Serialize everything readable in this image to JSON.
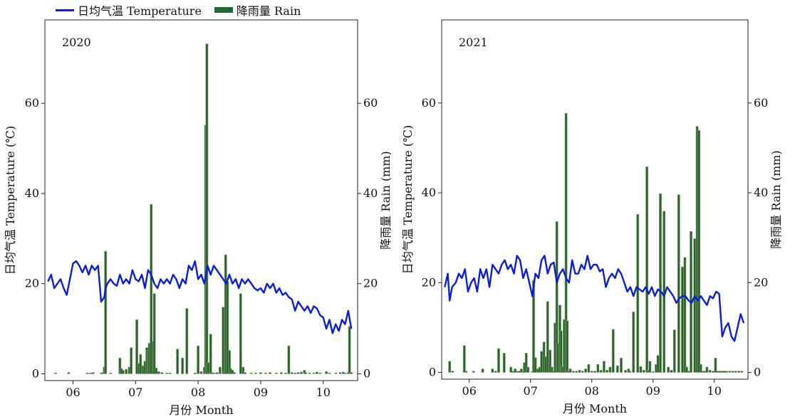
{
  "legend": {
    "temperature_label": "日均气温 Temperature",
    "rain_label": "降雨量 Rain"
  },
  "colors": {
    "temperature": "#0a1ed8",
    "rain_fill": "#2f5f2c",
    "rain_edge": "#7fb27a"
  },
  "chart_data": [
    {
      "type": "bar+line",
      "title": "2020",
      "xlabel": "月份 Month",
      "ylabel_left": "日均气温 Temperature (℃)",
      "ylabel_right": "降雨量 Rain (mm)",
      "xticks": [
        "06",
        "07",
        "08",
        "09",
        "10"
      ],
      "xtick_positions": [
        6,
        7,
        8,
        9,
        10
      ],
      "xlim": [
        5.55,
        10.55
      ],
      "ylim_left": [
        -1.5,
        78.5
      ],
      "ylim_right": [
        -1.5,
        78.5
      ],
      "yticks_left": [
        0,
        20,
        40,
        60
      ],
      "yticks_right": [
        0,
        20,
        40,
        60
      ],
      "temperature": {
        "name": "日均气温 Temperature",
        "x": [
          5.6,
          5.65,
          5.7,
          5.75,
          5.8,
          5.85,
          5.9,
          5.95,
          6.0,
          6.05,
          6.1,
          6.15,
          6.2,
          6.25,
          6.3,
          6.35,
          6.4,
          6.45,
          6.5,
          6.52,
          6.55,
          6.6,
          6.65,
          6.7,
          6.75,
          6.8,
          6.85,
          6.9,
          6.95,
          7.0,
          7.05,
          7.1,
          7.15,
          7.2,
          7.25,
          7.3,
          7.35,
          7.4,
          7.45,
          7.5,
          7.55,
          7.6,
          7.65,
          7.7,
          7.75,
          7.8,
          7.85,
          7.9,
          7.95,
          8.0,
          8.05,
          8.1,
          8.15,
          8.2,
          8.25,
          8.3,
          8.35,
          8.4,
          8.45,
          8.5,
          8.55,
          8.6,
          8.65,
          8.7,
          8.75,
          8.8,
          8.85,
          8.9,
          8.95,
          9.0,
          9.05,
          9.1,
          9.15,
          9.2,
          9.25,
          9.3,
          9.35,
          9.4,
          9.45,
          9.5,
          9.55,
          9.6,
          9.65,
          9.7,
          9.75,
          9.8,
          9.85,
          9.9,
          9.95,
          10.0,
          10.05,
          10.1,
          10.15,
          10.2,
          10.25,
          10.3,
          10.35,
          10.4,
          10.45
        ],
        "values": [
          20.5,
          22,
          19,
          20,
          21,
          19,
          17.5,
          21,
          24.5,
          25,
          24,
          22.5,
          24,
          22,
          24,
          23,
          24,
          16,
          17,
          19,
          20,
          21,
          20,
          19.5,
          22,
          20,
          21,
          20,
          23,
          21,
          20.5,
          22,
          19,
          23,
          22,
          20,
          19,
          21,
          20,
          21,
          20,
          22,
          21,
          19,
          21,
          20,
          24,
          23,
          25,
          21,
          22,
          20,
          24,
          22,
          24,
          23,
          22,
          21,
          20,
          22,
          20,
          21,
          19,
          21,
          20,
          21,
          20,
          19,
          18.5,
          19,
          18,
          20,
          19,
          20,
          18,
          19,
          17.5,
          18,
          17,
          16.5,
          14,
          16,
          15,
          14,
          15,
          13.5,
          15,
          14.5,
          13,
          12.5,
          10,
          12,
          9,
          11,
          9.5,
          12,
          11,
          14,
          10
        ]
      },
      "rain": {
        "name": "降雨量 Rain",
        "x": [
          5.72,
          5.93,
          6.23,
          6.28,
          6.32,
          6.45,
          6.48,
          6.5,
          6.52,
          6.6,
          6.75,
          6.77,
          6.8,
          6.85,
          6.9,
          6.93,
          7.02,
          7.05,
          7.08,
          7.12,
          7.15,
          7.18,
          7.2,
          7.22,
          7.25,
          7.28,
          7.3,
          7.33,
          7.37,
          7.42,
          7.5,
          7.55,
          7.67,
          7.75,
          7.82,
          7.95,
          8.0,
          8.05,
          8.1,
          8.12,
          8.14,
          8.16,
          8.2,
          8.22,
          8.25,
          8.3,
          8.35,
          8.4,
          8.42,
          8.44,
          8.47,
          8.5,
          8.52,
          8.55,
          8.58,
          8.68,
          8.72,
          8.75,
          8.85,
          8.92,
          9.0,
          9.08,
          9.15,
          9.25,
          9.33,
          9.4,
          9.45,
          9.5,
          9.55,
          9.6,
          9.65,
          9.7,
          9.72,
          9.78,
          9.85,
          9.9,
          9.95,
          10.05,
          10.1,
          10.2,
          10.27,
          10.32,
          10.35,
          10.4,
          10.42,
          10.45
        ],
        "values": [
          0.2,
          0.3,
          0.2,
          0.2,
          0.3,
          0.2,
          0.3,
          1.5,
          27.2,
          0.2,
          3.5,
          1.2,
          0.8,
          1.0,
          1.5,
          5.8,
          12,
          2.3,
          4.3,
          1.8,
          2.8,
          5.8,
          5.2,
          6.8,
          37.6,
          7.2,
          17.8,
          1.3,
          0.5,
          0.3,
          0.2,
          0.2,
          5.5,
          3.5,
          14.5,
          0.2,
          6.2,
          0.5,
          1.5,
          55.2,
          73.2,
          2.5,
          8.8,
          0.3,
          0.2,
          0.3,
          1.5,
          14.8,
          0.5,
          26.4,
          20.5,
          5.2,
          1.2,
          0.8,
          0.3,
          17.8,
          1.5,
          0.3,
          0.2,
          0.2,
          0.3,
          0.2,
          0.3,
          0.2,
          0.3,
          0.2,
          6.2,
          0.3,
          0.2,
          0.3,
          0.4,
          0.8,
          0.3,
          0.2,
          0.2,
          0.4,
          0.2,
          0.5,
          0.2,
          0.2,
          0.3,
          0.4,
          0.2,
          0.3,
          10.5,
          0.3
        ]
      }
    },
    {
      "type": "bar+line",
      "title": "2021",
      "xlabel": "月份 Month",
      "ylabel_left": "日均气温 Temperature (℃)",
      "ylabel_right": "降雨量 Rain (mm)",
      "xticks": [
        "06",
        "07",
        "08",
        "09",
        "10"
      ],
      "xtick_positions": [
        6,
        7,
        8,
        9,
        10
      ],
      "xlim": [
        5.55,
        10.55
      ],
      "ylim_left": [
        -1.5,
        78.5
      ],
      "ylim_right": [
        -1.5,
        78.5
      ],
      "yticks_left": [
        0,
        20,
        40,
        60
      ],
      "yticks_right": [
        0,
        20,
        40,
        60
      ],
      "temperature": {
        "name": "日均气温 Temperature",
        "x": [
          5.6,
          5.65,
          5.68,
          5.72,
          5.78,
          5.83,
          5.88,
          5.93,
          5.98,
          6.03,
          6.08,
          6.13,
          6.18,
          6.23,
          6.28,
          6.33,
          6.38,
          6.43,
          6.48,
          6.53,
          6.58,
          6.63,
          6.68,
          6.73,
          6.78,
          6.83,
          6.88,
          6.93,
          6.98,
          7.03,
          7.08,
          7.13,
          7.18,
          7.23,
          7.28,
          7.33,
          7.38,
          7.43,
          7.48,
          7.53,
          7.58,
          7.63,
          7.68,
          7.73,
          7.78,
          7.83,
          7.88,
          7.93,
          7.98,
          8.03,
          8.08,
          8.13,
          8.18,
          8.23,
          8.28,
          8.33,
          8.38,
          8.43,
          8.48,
          8.53,
          8.58,
          8.63,
          8.68,
          8.73,
          8.78,
          8.83,
          8.88,
          8.93,
          8.98,
          9.03,
          9.08,
          9.13,
          9.18,
          9.23,
          9.28,
          9.33,
          9.38,
          9.43,
          9.48,
          9.53,
          9.58,
          9.63,
          9.68,
          9.73,
          9.78,
          9.83,
          9.88,
          9.93,
          9.98,
          10.03,
          10.08,
          10.13,
          10.18,
          10.23,
          10.28,
          10.33,
          10.38,
          10.43,
          10.48
        ],
        "values": [
          19,
          22,
          16,
          19,
          20,
          22,
          21,
          23,
          18,
          20,
          21,
          18,
          23,
          21,
          23,
          19,
          24,
          23,
          22,
          24,
          25,
          23,
          24,
          22,
          26,
          25,
          21,
          23,
          20,
          17,
          22,
          21,
          25,
          26,
          22,
          24,
          24.5,
          20,
          22,
          23,
          21,
          20,
          25,
          22,
          22,
          24,
          23,
          26,
          23,
          24,
          24,
          22.5,
          23,
          19,
          21,
          22,
          21,
          23,
          22,
          20,
          18,
          19,
          17,
          19,
          18.5,
          18,
          19,
          17.5,
          19,
          17,
          18.5,
          18,
          17,
          19,
          18,
          17,
          15.5,
          16.5,
          17,
          17,
          16,
          15.5,
          17,
          16,
          17,
          16,
          15,
          17,
          16.5,
          18,
          17.5,
          8,
          10,
          11,
          8,
          7,
          10,
          13,
          11
        ]
      },
      "rain": {
        "name": "降雨量 Rain",
        "x": [
          5.68,
          5.73,
          5.92,
          5.95,
          6.07,
          6.22,
          6.38,
          6.43,
          6.48,
          6.57,
          6.68,
          6.72,
          6.75,
          6.78,
          6.8,
          6.82,
          6.85,
          6.88,
          6.9,
          6.93,
          6.96,
          7.03,
          7.05,
          7.08,
          7.12,
          7.15,
          7.18,
          7.22,
          7.25,
          7.28,
          7.32,
          7.35,
          7.38,
          7.4,
          7.43,
          7.45,
          7.48,
          7.5,
          7.52,
          7.55,
          7.58,
          7.6,
          7.62,
          7.65,
          7.7,
          7.75,
          7.8,
          7.85,
          7.9,
          7.95,
          8.0,
          8.05,
          8.1,
          8.15,
          8.2,
          8.25,
          8.3,
          8.35,
          8.42,
          8.48,
          8.55,
          8.6,
          8.62,
          8.68,
          8.75,
          8.8,
          8.85,
          8.9,
          8.92,
          8.95,
          9.0,
          9.05,
          9.08,
          9.12,
          9.18,
          9.25,
          9.3,
          9.35,
          9.42,
          9.48,
          9.52,
          9.55,
          9.58,
          9.62,
          9.68,
          9.72,
          9.75,
          9.78,
          9.82,
          9.85,
          9.88,
          9.93,
          9.98,
          10.02,
          10.05,
          10.08,
          10.1,
          10.12,
          10.15,
          10.17,
          10.2,
          10.25,
          10.3,
          10.35,
          10.4,
          10.45
        ],
        "values": [
          2.5,
          0.3,
          6,
          0.3,
          0.3,
          0.8,
          0.8,
          0.3,
          5.3,
          4.3,
          1.2,
          0.3,
          0.8,
          0.3,
          0.2,
          0.3,
          0.8,
          0.3,
          2.2,
          4.3,
          1.2,
          0.2,
          20.5,
          3.3,
          0.8,
          1.2,
          4.7,
          6.8,
          3.5,
          15.8,
          5,
          1.2,
          0.3,
          11,
          33.6,
          6.5,
          15,
          9.3,
          1.3,
          11.8,
          57.7,
          11.5,
          0.3,
          0.8,
          0.3,
          0.3,
          0.5,
          0.3,
          0.8,
          1.8,
          0.3,
          0.3,
          1.8,
          0.5,
          2.5,
          0.5,
          1.2,
          9.6,
          1.5,
          3.2,
          0.5,
          0.8,
          0.3,
          13.5,
          35.2,
          1.3,
          0.5,
          45.8,
          0.5,
          2.5,
          0.2,
          1.8,
          3.8,
          39.8,
          35.9,
          1.2,
          0.5,
          9.5,
          39.6,
          23.5,
          25.6,
          1.2,
          0.3,
          31.4,
          29.8,
          54.8,
          53.9,
          1.8,
          0.3,
          0.3,
          1.2,
          0.5,
          0.3,
          3.2,
          0.3,
          0.3,
          0.3,
          0.3,
          0.3,
          0.3,
          0.3,
          0.3,
          0.3,
          0.3,
          0.3,
          0.3
        ]
      }
    }
  ]
}
